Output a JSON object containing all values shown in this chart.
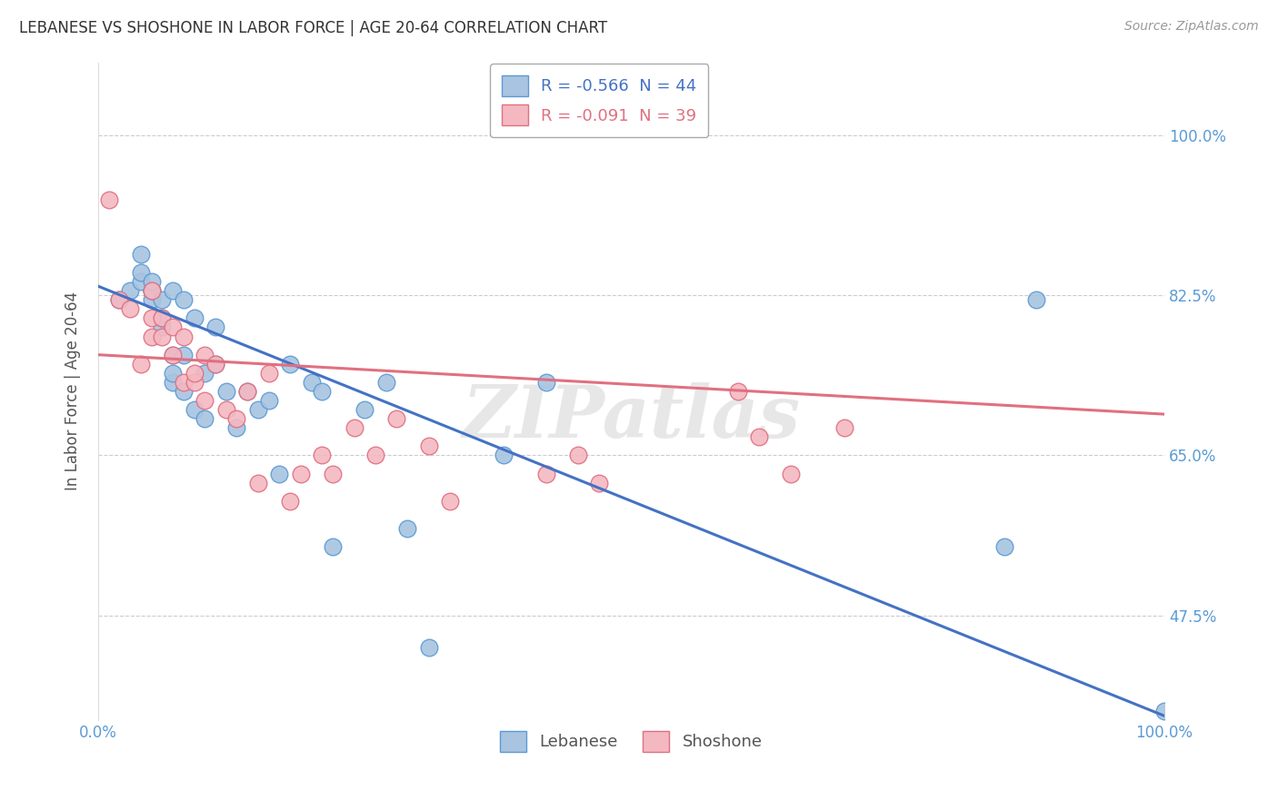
{
  "title": "LEBANESE VS SHOSHONE IN LABOR FORCE | AGE 20-64 CORRELATION CHART",
  "source_text": "Source: ZipAtlas.com",
  "ylabel": "In Labor Force | Age 20-64",
  "watermark": "ZIPatlas",
  "legend_entry_0": "R = -0.566  N = 44",
  "legend_entry_1": "R = -0.091  N = 39",
  "legend_label_lebanese": "Lebanese",
  "legend_label_shoshone": "Shoshone",
  "x_tick_labels": [
    "0.0%",
    "100.0%"
  ],
  "y_tick_labels": [
    "47.5%",
    "65.0%",
    "82.5%",
    "100.0%"
  ],
  "ytick_vals": [
    0.475,
    0.65,
    0.825,
    1.0
  ],
  "xtick_vals": [
    0.0,
    1.0
  ],
  "xlim": [
    0.0,
    1.0
  ],
  "ylim": [
    0.36,
    1.08
  ],
  "blue_fill": "#a8c4e0",
  "pink_fill": "#f4b8c1",
  "blue_edge": "#5b9bd5",
  "pink_edge": "#e07080",
  "blue_line": "#4472c4",
  "pink_line": "#e07080",
  "background_color": "#ffffff",
  "grid_color": "#cccccc",
  "title_color": "#333333",
  "axis_tick_color": "#5b9bd5",
  "ylabel_color": "#555555",
  "source_color": "#999999",
  "watermark_color": "#d0d0d0",
  "lebanese_x": [
    0.02,
    0.03,
    0.04,
    0.04,
    0.04,
    0.05,
    0.05,
    0.05,
    0.05,
    0.06,
    0.06,
    0.06,
    0.07,
    0.07,
    0.07,
    0.07,
    0.08,
    0.08,
    0.08,
    0.09,
    0.09,
    0.1,
    0.1,
    0.11,
    0.11,
    0.12,
    0.13,
    0.14,
    0.15,
    0.16,
    0.17,
    0.18,
    0.2,
    0.21,
    0.22,
    0.25,
    0.27,
    0.29,
    0.31,
    0.38,
    0.42,
    0.85,
    0.88,
    1.0
  ],
  "lebanese_y": [
    0.82,
    0.83,
    0.84,
    0.85,
    0.87,
    0.82,
    0.83,
    0.83,
    0.84,
    0.79,
    0.8,
    0.82,
    0.73,
    0.74,
    0.76,
    0.83,
    0.72,
    0.76,
    0.82,
    0.7,
    0.8,
    0.69,
    0.74,
    0.75,
    0.79,
    0.72,
    0.68,
    0.72,
    0.7,
    0.71,
    0.63,
    0.75,
    0.73,
    0.72,
    0.55,
    0.7,
    0.73,
    0.57,
    0.44,
    0.65,
    0.73,
    0.55,
    0.82,
    0.37
  ],
  "shoshone_x": [
    0.01,
    0.02,
    0.03,
    0.04,
    0.05,
    0.05,
    0.05,
    0.06,
    0.06,
    0.07,
    0.07,
    0.08,
    0.08,
    0.09,
    0.09,
    0.1,
    0.1,
    0.11,
    0.12,
    0.13,
    0.14,
    0.15,
    0.16,
    0.18,
    0.19,
    0.21,
    0.22,
    0.24,
    0.26,
    0.28,
    0.31,
    0.33,
    0.42,
    0.45,
    0.47,
    0.6,
    0.62,
    0.65,
    0.7
  ],
  "shoshone_y": [
    0.93,
    0.82,
    0.81,
    0.75,
    0.78,
    0.8,
    0.83,
    0.78,
    0.8,
    0.76,
    0.79,
    0.73,
    0.78,
    0.73,
    0.74,
    0.71,
    0.76,
    0.75,
    0.7,
    0.69,
    0.72,
    0.62,
    0.74,
    0.6,
    0.63,
    0.65,
    0.63,
    0.68,
    0.65,
    0.69,
    0.66,
    0.6,
    0.63,
    0.65,
    0.62,
    0.72,
    0.67,
    0.63,
    0.68
  ],
  "blue_trend_x": [
    0.0,
    1.0
  ],
  "blue_trend_y": [
    0.835,
    0.365
  ],
  "pink_trend_x": [
    0.0,
    1.0
  ],
  "pink_trend_y": [
    0.76,
    0.695
  ]
}
